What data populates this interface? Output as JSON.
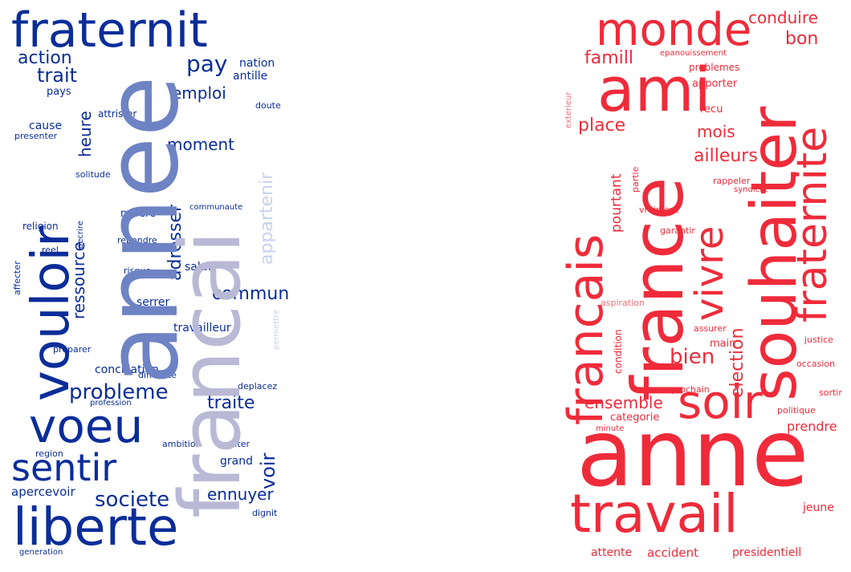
{
  "colors": {
    "blue_dark": "#0a2d99",
    "blue_mid": "#6e83c4",
    "blue_light": "#b9b9d6",
    "blue_pale": "#c9d2ec",
    "red": "#ef2b3a",
    "red_light": "#f2707a"
  },
  "left_cloud": {
    "words": [
      "fraternit",
      "action",
      "trait",
      "pay",
      "nation",
      "antille",
      "pays",
      "emploi",
      "doute",
      "attrister",
      "cause",
      "presenter",
      "heure",
      "moment",
      "appartenir",
      "solitude",
      "adresser",
      "communaute",
      "misere",
      "religion",
      "decrire",
      "repondre",
      "reel",
      "ressource",
      "salut",
      "affecter",
      "risque",
      "commun",
      "permettre",
      "serrer",
      "travailleur",
      "preparer",
      "conciliation",
      "difficulte",
      "deplacez",
      "profession",
      "probleme",
      "traite",
      "voir",
      "ambition",
      "decriter",
      "region",
      "grand",
      "ennuyer",
      "apercevoir",
      "societe",
      "dignit",
      "generation",
      "vouloir",
      "annee",
      "francai",
      "voeu",
      "sentir",
      "liberte"
    ]
  },
  "right_cloud": {
    "words": [
      "monde",
      "conduire",
      "bon",
      "famill",
      "epanouissement",
      "problemes",
      "apporter",
      "exterieur",
      "recu",
      "place",
      "mois",
      "ailleurs",
      "pourtant",
      "partie",
      "rappeler",
      "syndicat",
      "vraiment",
      "garantir",
      "aspiration",
      "assurer",
      "condition",
      "main",
      "justice",
      "occasion",
      "bien",
      "election",
      "prochain",
      "sortir",
      "ensemble",
      "categorie",
      "politique",
      "minute",
      "prendre",
      "jeune",
      "attente",
      "accident",
      "presidentiell",
      "ami",
      "francais",
      "france",
      "vivre",
      "souhaiter",
      "fraternite",
      "soir",
      "travail",
      "anne"
    ]
  }
}
